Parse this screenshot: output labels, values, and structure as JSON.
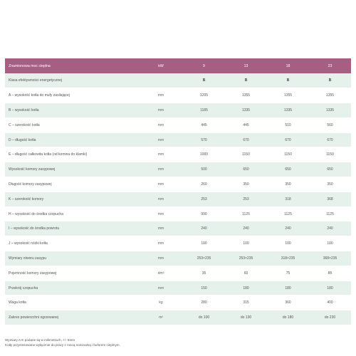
{
  "table": {
    "header": {
      "label": "Znamionowa moc cieplna",
      "unit": "kW",
      "models": [
        "9",
        "13",
        "18",
        "23"
      ]
    },
    "rows": [
      {
        "label": "Klasa efektywności energetycznej",
        "unit": "",
        "values": [
          "B",
          "B",
          "B",
          "B"
        ],
        "bold": true
      },
      {
        "label": "A – wysokość kotła do mufy zasilającej",
        "unit": "mm",
        "values": [
          "1205",
          "1355",
          "1355",
          "1355"
        ]
      },
      {
        "label": "B – wysokość kotła",
        "unit": "mm",
        "values": [
          "1185",
          "1335",
          "1335",
          "1335"
        ]
      },
      {
        "label": "C – szerokość kotła",
        "unit": "mm",
        "values": [
          "445",
          "445",
          "510",
          "560"
        ]
      },
      {
        "label": "D – długość kotła",
        "unit": "mm",
        "values": [
          "570",
          "670",
          "670",
          "670"
        ]
      },
      {
        "label": "E – długość całkowita kotła (od komina do klamki)",
        "unit": "mm",
        "values": [
          "1000",
          "1150",
          "1150",
          "1150"
        ]
      },
      {
        "label": "Wysokość komory zasypowej",
        "unit": "mm",
        "values": [
          "500",
          "650",
          "650",
          "650"
        ]
      },
      {
        "label": "Długość komory zasypowej",
        "unit": "mm",
        "values": [
          "260",
          "350",
          "350",
          "350"
        ]
      },
      {
        "label": "K – szerokość komory",
        "unit": "mm",
        "values": [
          "253",
          "253",
          "318",
          "368"
        ]
      },
      {
        "label": "H – wysokość do środka czopucha",
        "unit": "mm",
        "values": [
          "990",
          "1125",
          "1125",
          "1125"
        ]
      },
      {
        "label": "I – wysokość do środka powrotu",
        "unit": "mm",
        "values": [
          "240",
          "240",
          "240",
          "240"
        ]
      },
      {
        "label": "J – wysokość nóżki kotła",
        "unit": "mm",
        "values": [
          "100",
          "100",
          "100",
          "100"
        ]
      },
      {
        "label": "Wymiary otworu zasypu",
        "unit": "mm",
        "values": [
          "253×235",
          "253×235",
          "318×235",
          "368×235"
        ]
      },
      {
        "label": "Pojemność komory zasypowej",
        "unit": "dm³",
        "values": [
          "35",
          "60",
          "75",
          "85"
        ]
      },
      {
        "label": "Przekrój czopucha",
        "unit": "mm",
        "values": [
          "150",
          "180",
          "180",
          "180"
        ]
      },
      {
        "label": "Waga kotła",
        "unit": "kg",
        "values": [
          "280",
          "315",
          "360",
          "400"
        ]
      },
      {
        "label": "Zakres powierzchni ogrzewanej",
        "unit": "m²",
        "values": [
          "do 100",
          "do 130",
          "do 180",
          "do 230"
        ]
      }
    ]
  },
  "notes": [
    "Wymiary A-K podane są w milimetrach, +/- 5mm",
    "Kotły przystosowane wyłącznie do pracy z mocą nominalną i buforem cieplnym."
  ]
}
